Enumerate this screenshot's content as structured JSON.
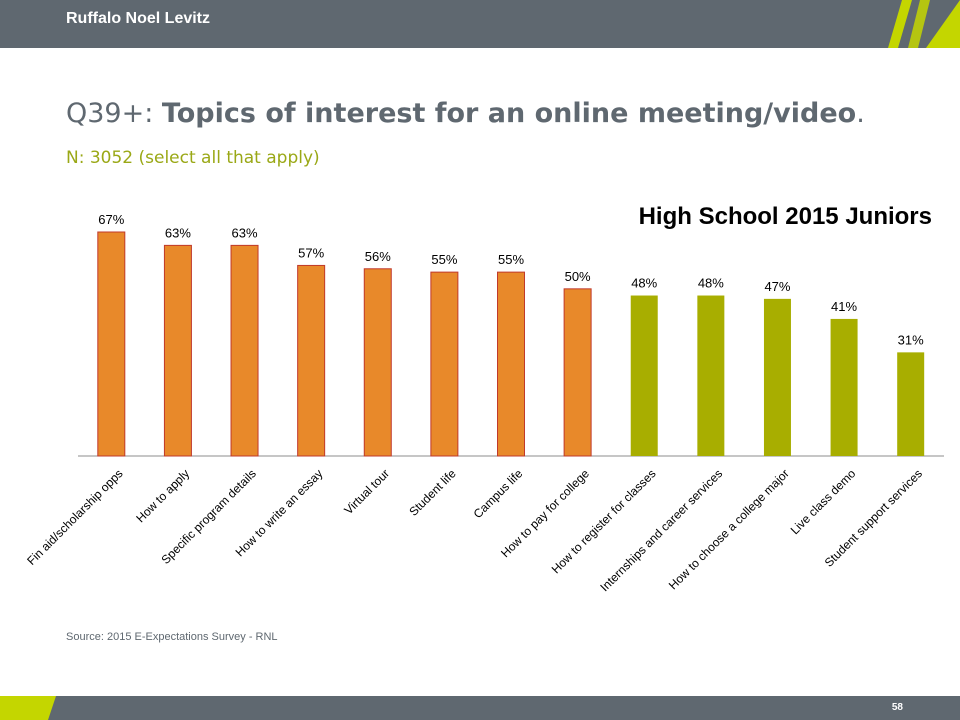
{
  "header": {
    "brand": "Ruffalo Noel Levitz"
  },
  "slide": {
    "title_prefix": "Q39+: ",
    "title_main": "Topics of interest for an online meeting/video",
    "title_suffix": ".",
    "subtitle": "N: 3052 (select all that apply)",
    "source": "Source: 2015 E-Expectations Survey - RNL",
    "page_number": "58"
  },
  "colors": {
    "orange": "#e8892a",
    "orange_edge": "#c0392b",
    "green": "#a8ae00",
    "header": "#5f6870",
    "accent": "#c4d600"
  },
  "chart_data": {
    "type": "bar",
    "title": "High School 2015 Juniors",
    "categories": [
      "Fin aid/scholarship opps",
      "How to apply",
      "Specific program details",
      "How to write an essay",
      "Virtual tour",
      "Student life",
      "Campus life",
      "How to pay for college",
      "How to register for classes",
      "Internships and career services",
      "How to choose a college major",
      "Live class demo",
      "Student support services"
    ],
    "values": [
      67,
      63,
      63,
      57,
      56,
      55,
      55,
      50,
      48,
      48,
      47,
      41,
      31
    ],
    "value_labels": [
      "67%",
      "63%",
      "63%",
      "57%",
      "56%",
      "55%",
      "55%",
      "50%",
      "48%",
      "48%",
      "47%",
      "41%",
      "31%"
    ],
    "bar_colors": [
      "orange",
      "orange",
      "orange",
      "orange",
      "orange",
      "orange",
      "orange",
      "orange",
      "green",
      "green",
      "green",
      "green",
      "green"
    ],
    "ylim": [
      0,
      67
    ],
    "grid": false,
    "xlabel": "",
    "ylabel": ""
  }
}
